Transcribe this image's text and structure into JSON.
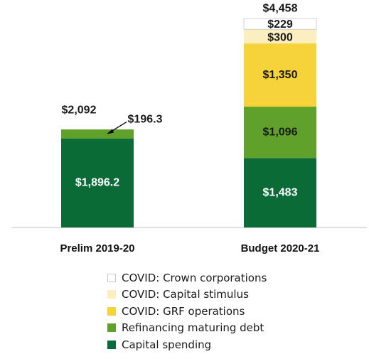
{
  "chart_data": {
    "type": "bar",
    "stacked": true,
    "categories": [
      "Prelim 2019-20",
      "Budget 2020-21"
    ],
    "series": [
      {
        "name": "Capital spending",
        "values": [
          1896.2,
          1483
        ],
        "labels": [
          "$1,896.2",
          "$1,483"
        ],
        "color": "#0a6b37",
        "label_color": "#ffffff"
      },
      {
        "name": "Refinancing maturing debt",
        "values": [
          196.3,
          1096
        ],
        "labels": [
          "$196.3",
          "$1,096"
        ],
        "color": "#5fa12a",
        "label_color": "#1a1a1a"
      },
      {
        "name": "COVID: GRF operations",
        "values": [
          0,
          1350
        ],
        "labels": [
          "",
          "$1,350"
        ],
        "color": "#f6d33b",
        "label_color": "#1a1a1a"
      },
      {
        "name": "COVID: Capital stimulus",
        "values": [
          0,
          300
        ],
        "labels": [
          "",
          "$300"
        ],
        "color": "#fbefbf",
        "label_color": "#1a1a1a"
      },
      {
        "name": "COVID: Crown corporations",
        "values": [
          0,
          229
        ],
        "labels": [
          "",
          "$229"
        ],
        "color": "#ffffff",
        "label_color": "#1a1a1a"
      }
    ],
    "totals": [
      2092,
      4458
    ],
    "total_labels": [
      "$2,092",
      "$4,458"
    ],
    "legend_position": "bottom",
    "grid": false
  }
}
